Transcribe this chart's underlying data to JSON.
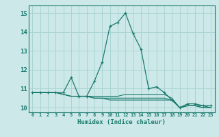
{
  "xlabel": "Humidex (Indice chaleur)",
  "background_color": "#cce8e8",
  "grid_color": "#aad4d4",
  "line_color": "#1a7a6e",
  "xlim": [
    -0.5,
    23.5
  ],
  "ylim": [
    9.75,
    15.4
  ],
  "x_ticks": [
    0,
    1,
    2,
    3,
    4,
    5,
    6,
    7,
    8,
    9,
    10,
    11,
    12,
    13,
    14,
    15,
    16,
    17,
    18,
    19,
    20,
    21,
    22,
    23
  ],
  "y_ticks": [
    10,
    11,
    12,
    13,
    14,
    15
  ],
  "series": [
    [
      10.8,
      10.8,
      10.8,
      10.8,
      10.8,
      11.6,
      10.6,
      10.6,
      11.4,
      12.4,
      14.3,
      14.5,
      15.0,
      13.9,
      13.1,
      11.0,
      11.1,
      10.8,
      10.4,
      10.0,
      10.2,
      10.2,
      10.1,
      10.1
    ],
    [
      10.8,
      10.8,
      10.8,
      10.8,
      10.7,
      10.6,
      10.6,
      10.6,
      10.6,
      10.6,
      10.6,
      10.6,
      10.7,
      10.7,
      10.7,
      10.7,
      10.7,
      10.7,
      10.5,
      10.0,
      10.1,
      10.1,
      10.1,
      10.0
    ],
    [
      10.8,
      10.8,
      10.8,
      10.8,
      10.7,
      10.6,
      10.6,
      10.6,
      10.5,
      10.5,
      10.5,
      10.5,
      10.5,
      10.5,
      10.5,
      10.5,
      10.5,
      10.5,
      10.4,
      10.0,
      10.1,
      10.1,
      10.0,
      10.0
    ],
    [
      10.8,
      10.8,
      10.8,
      10.8,
      10.7,
      10.6,
      10.6,
      10.6,
      10.5,
      10.5,
      10.4,
      10.4,
      10.4,
      10.4,
      10.4,
      10.4,
      10.4,
      10.4,
      10.4,
      10.0,
      10.1,
      10.1,
      10.0,
      10.0
    ]
  ]
}
